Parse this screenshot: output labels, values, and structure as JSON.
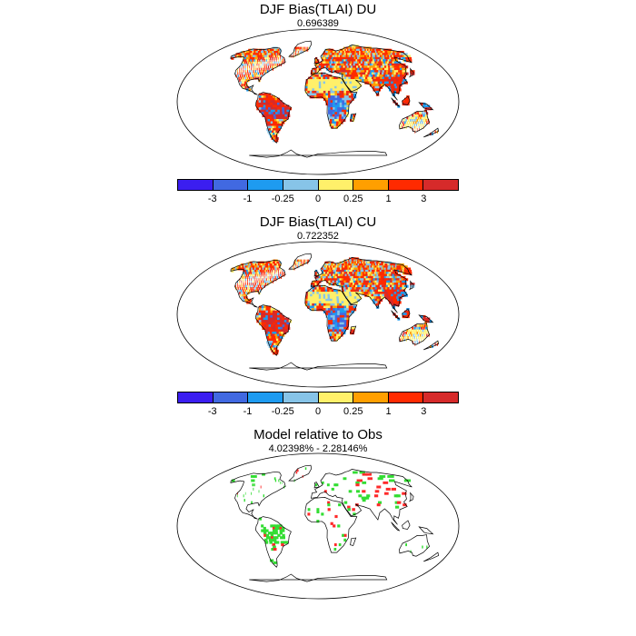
{
  "panels": [
    {
      "title": "DJF Bias(TLAI) DU",
      "subtitle": "0.696389",
      "kind": "bias"
    },
    {
      "title": "DJF Bias(TLAI) CU",
      "subtitle": "0.722352",
      "kind": "bias"
    },
    {
      "title": "Model relative to Obs",
      "subtitle": "4.02398% - 2.28146%",
      "kind": "relative"
    }
  ],
  "colorbar": {
    "colors": [
      "#3b1ef0",
      "#4169e1",
      "#1e9bf0",
      "#87c4e8",
      "#fff06a",
      "#ff9f00",
      "#ff2a00",
      "#d62a2a"
    ],
    "tick_labels": [
      "-3",
      "-1",
      "-0.25",
      "0",
      "0.25",
      "1",
      "3"
    ]
  },
  "relative_colors": {
    "better": "#33dd33",
    "worse": "#ff2a2a"
  }
}
